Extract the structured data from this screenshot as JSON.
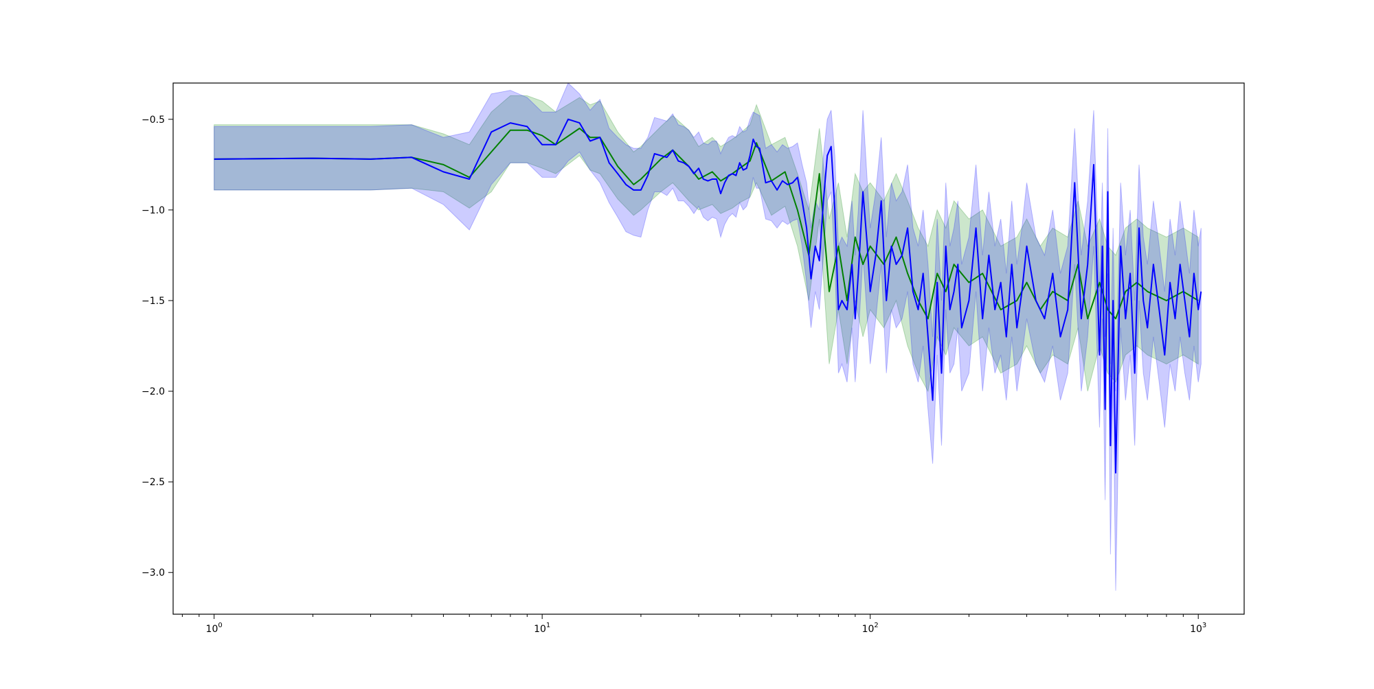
{
  "chart_data": {
    "type": "line",
    "title": "",
    "xlabel": "",
    "ylabel": "",
    "x_scale": "log",
    "xlim": [
      0.75,
      1380
    ],
    "ylim": [
      -3.23,
      -0.3
    ],
    "grid": false,
    "legend": "none",
    "x_ticks": [
      {
        "value": 1,
        "base": "10",
        "exp": "0"
      },
      {
        "value": 10,
        "base": "10",
        "exp": "1"
      },
      {
        "value": 100,
        "base": "10",
        "exp": "2"
      },
      {
        "value": 1000,
        "base": "10",
        "exp": "3"
      }
    ],
    "y_ticks": [
      {
        "value": -0.5,
        "label": "−0.5"
      },
      {
        "value": -1.0,
        "label": "−1.0"
      },
      {
        "value": -1.5,
        "label": "−1.5"
      },
      {
        "value": -2.0,
        "label": "−2.0"
      },
      {
        "value": -2.5,
        "label": "−2.5"
      },
      {
        "value": -3.0,
        "label": "−3.0"
      }
    ],
    "series": [
      {
        "color": "#008000",
        "band_color": "#008000",
        "band_opacity": 0.2,
        "x": [
          1,
          2,
          3,
          4,
          5,
          6,
          7,
          8,
          9,
          10,
          11,
          13,
          14,
          15,
          17,
          19,
          20,
          23,
          25,
          28,
          30,
          33,
          35,
          38,
          40,
          43,
          45,
          50,
          55,
          60,
          65,
          70,
          75,
          80,
          85,
          90,
          95,
          100,
          110,
          120,
          130,
          140,
          150,
          160,
          170,
          180,
          200,
          220,
          250,
          280,
          300,
          330,
          360,
          400,
          430,
          460,
          500,
          530,
          560,
          600,
          650,
          700,
          800,
          900,
          1000
        ],
        "y": [
          -0.72,
          -0.715,
          -0.72,
          -0.71,
          -0.75,
          -0.82,
          -0.68,
          -0.56,
          -0.56,
          -0.59,
          -0.64,
          -0.55,
          -0.6,
          -0.6,
          -0.76,
          -0.86,
          -0.83,
          -0.72,
          -0.67,
          -0.76,
          -0.83,
          -0.79,
          -0.84,
          -0.8,
          -0.77,
          -0.73,
          -0.63,
          -0.84,
          -0.79,
          -1.0,
          -1.25,
          -0.8,
          -1.45,
          -1.2,
          -1.5,
          -1.15,
          -1.3,
          -1.2,
          -1.3,
          -1.15,
          -1.35,
          -1.5,
          -1.6,
          -1.35,
          -1.45,
          -1.3,
          -1.4,
          -1.35,
          -1.55,
          -1.5,
          -1.4,
          -1.55,
          -1.45,
          -1.5,
          -1.3,
          -1.6,
          -1.4,
          -1.55,
          -1.6,
          -1.45,
          -1.4,
          -1.45,
          -1.5,
          -1.45,
          -1.5
        ],
        "lower": [
          -0.89,
          -0.89,
          -0.89,
          -0.88,
          -0.9,
          -0.99,
          -0.9,
          -0.74,
          -0.74,
          -0.77,
          -0.8,
          -0.7,
          -0.78,
          -0.8,
          -0.94,
          -1.03,
          -1.0,
          -0.9,
          -0.85,
          -0.95,
          -1.0,
          -0.97,
          -1.02,
          -0.99,
          -0.96,
          -0.93,
          -0.85,
          -1.03,
          -0.98,
          -1.2,
          -1.5,
          -1.05,
          -1.85,
          -1.55,
          -1.85,
          -1.5,
          -1.7,
          -1.55,
          -1.65,
          -1.5,
          -1.75,
          -1.9,
          -2.0,
          -1.7,
          -1.8,
          -1.65,
          -1.75,
          -1.7,
          -1.9,
          -1.85,
          -1.75,
          -1.9,
          -1.8,
          -1.85,
          -1.65,
          -2.0,
          -1.75,
          -1.9,
          -1.95,
          -1.8,
          -1.75,
          -1.8,
          -1.85,
          -1.8,
          -1.85
        ],
        "upper": [
          -0.53,
          -0.53,
          -0.53,
          -0.53,
          -0.58,
          -0.64,
          -0.46,
          -0.37,
          -0.37,
          -0.4,
          -0.46,
          -0.38,
          -0.42,
          -0.4,
          -0.57,
          -0.68,
          -0.65,
          -0.54,
          -0.48,
          -0.56,
          -0.65,
          -0.6,
          -0.65,
          -0.61,
          -0.58,
          -0.53,
          -0.42,
          -0.64,
          -0.6,
          -0.8,
          -1.0,
          -0.55,
          -1.05,
          -0.85,
          -1.15,
          -0.8,
          -0.9,
          -0.85,
          -0.95,
          -0.8,
          -0.95,
          -1.1,
          -1.2,
          -1.0,
          -1.1,
          -0.95,
          -1.05,
          -1.0,
          -1.2,
          -1.15,
          -1.05,
          -1.2,
          -1.1,
          -1.15,
          -0.95,
          -1.2,
          -1.05,
          -1.2,
          -1.25,
          -1.1,
          -1.05,
          -1.1,
          -1.15,
          -1.1,
          -1.15
        ]
      },
      {
        "color": "#0000ff",
        "band_color": "#0000ff",
        "band_opacity": 0.2,
        "x": [
          1,
          2,
          3,
          4,
          5,
          6,
          7,
          8,
          9,
          10,
          11,
          12,
          13,
          14,
          15,
          16,
          17,
          18,
          19,
          20,
          21,
          22,
          23,
          24,
          25,
          26,
          27,
          28,
          29,
          30,
          31,
          32,
          33,
          34,
          35,
          36,
          37,
          38,
          39,
          40,
          41,
          42,
          43,
          44,
          45,
          46,
          48,
          50,
          52,
          54,
          56,
          58,
          60,
          62,
          64,
          66,
          68,
          70,
          72,
          74,
          76,
          78,
          80,
          82,
          85,
          88,
          90,
          92,
          95,
          98,
          100,
          104,
          108,
          112,
          116,
          120,
          125,
          130,
          135,
          140,
          145,
          150,
          155,
          160,
          165,
          170,
          175,
          180,
          185,
          190,
          200,
          210,
          220,
          230,
          240,
          250,
          260,
          270,
          280,
          290,
          300,
          320,
          340,
          360,
          380,
          400,
          420,
          440,
          460,
          480,
          500,
          510,
          520,
          530,
          540,
          550,
          560,
          580,
          600,
          620,
          640,
          660,
          680,
          700,
          730,
          760,
          790,
          820,
          850,
          880,
          910,
          940,
          970,
          1000,
          1020
        ],
        "y": [
          -0.72,
          -0.715,
          -0.72,
          -0.71,
          -0.79,
          -0.83,
          -0.57,
          -0.52,
          -0.54,
          -0.64,
          -0.64,
          -0.5,
          -0.52,
          -0.62,
          -0.6,
          -0.74,
          -0.8,
          -0.86,
          -0.89,
          -0.89,
          -0.81,
          -0.69,
          -0.7,
          -0.71,
          -0.67,
          -0.73,
          -0.74,
          -0.76,
          -0.8,
          -0.77,
          -0.83,
          -0.84,
          -0.83,
          -0.83,
          -0.91,
          -0.85,
          -0.81,
          -0.8,
          -0.81,
          -0.74,
          -0.78,
          -0.77,
          -0.7,
          -0.61,
          -0.65,
          -0.66,
          -0.85,
          -0.84,
          -0.89,
          -0.84,
          -0.86,
          -0.85,
          -0.82,
          -0.95,
          -1.1,
          -1.38,
          -1.2,
          -1.28,
          -0.95,
          -0.7,
          -0.65,
          -1.0,
          -1.55,
          -1.5,
          -1.55,
          -1.3,
          -1.6,
          -1.35,
          -0.9,
          -1.2,
          -1.45,
          -1.25,
          -0.95,
          -1.5,
          -1.2,
          -1.3,
          -1.25,
          -1.1,
          -1.45,
          -1.55,
          -1.35,
          -1.7,
          -2.05,
          -1.4,
          -1.9,
          -1.2,
          -1.55,
          -1.45,
          -1.3,
          -1.65,
          -1.5,
          -1.1,
          -1.6,
          -1.25,
          -1.55,
          -1.4,
          -1.7,
          -1.3,
          -1.65,
          -1.45,
          -1.2,
          -1.5,
          -1.6,
          -1.35,
          -1.7,
          -1.55,
          -0.85,
          -1.6,
          -1.3,
          -0.75,
          -1.8,
          -1.2,
          -2.1,
          -0.9,
          -2.3,
          -1.5,
          -2.45,
          -1.2,
          -1.6,
          -1.35,
          -1.9,
          -1.1,
          -1.5,
          -1.65,
          -1.3,
          -1.55,
          -1.8,
          -1.4,
          -1.6,
          -1.3,
          -1.5,
          -1.7,
          -1.35,
          -1.55,
          -1.45
        ],
        "lower": [
          -0.89,
          -0.89,
          -0.89,
          -0.88,
          -0.97,
          -1.11,
          -0.86,
          -0.74,
          -0.74,
          -0.82,
          -0.82,
          -0.73,
          -0.68,
          -0.78,
          -0.85,
          -0.96,
          -1.04,
          -1.12,
          -1.14,
          -1.15,
          -1.0,
          -0.9,
          -0.9,
          -0.92,
          -0.88,
          -0.95,
          -0.95,
          -0.98,
          -1.02,
          -0.98,
          -1.04,
          -1.06,
          -1.04,
          -1.05,
          -1.15,
          -1.08,
          -1.04,
          -1.02,
          -1.04,
          -0.96,
          -1.0,
          -0.98,
          -0.92,
          -0.82,
          -0.88,
          -0.88,
          -1.05,
          -1.06,
          -1.1,
          -1.06,
          -1.08,
          -1.06,
          -1.05,
          -1.2,
          -1.4,
          -1.65,
          -1.45,
          -1.55,
          -1.25,
          -0.95,
          -0.9,
          -1.3,
          -1.9,
          -1.85,
          -1.95,
          -1.65,
          -1.95,
          -1.7,
          -1.25,
          -1.6,
          -1.85,
          -1.6,
          -1.3,
          -1.9,
          -1.55,
          -1.65,
          -1.6,
          -1.45,
          -1.85,
          -1.95,
          -1.75,
          -2.1,
          -2.4,
          -1.8,
          -2.3,
          -1.55,
          -1.9,
          -1.85,
          -1.65,
          -2.0,
          -1.9,
          -1.45,
          -2.0,
          -1.65,
          -1.9,
          -1.8,
          -2.05,
          -1.7,
          -2.0,
          -1.8,
          -1.6,
          -1.85,
          -1.95,
          -1.75,
          -2.05,
          -1.9,
          -1.3,
          -2.0,
          -1.7,
          -1.2,
          -2.2,
          -1.6,
          -2.6,
          -1.35,
          -2.9,
          -1.95,
          -3.1,
          -1.65,
          -2.05,
          -1.8,
          -2.3,
          -1.5,
          -1.9,
          -2.05,
          -1.7,
          -1.95,
          -2.2,
          -1.85,
          -2.0,
          -1.7,
          -1.9,
          -2.05,
          -1.75,
          -1.95,
          -1.85
        ],
        "upper": [
          -0.54,
          -0.54,
          -0.54,
          -0.53,
          -0.6,
          -0.57,
          -0.36,
          -0.34,
          -0.38,
          -0.46,
          -0.46,
          -0.3,
          -0.36,
          -0.45,
          -0.39,
          -0.55,
          -0.6,
          -0.64,
          -0.66,
          -0.66,
          -0.6,
          -0.49,
          -0.5,
          -0.51,
          -0.47,
          -0.53,
          -0.54,
          -0.56,
          -0.6,
          -0.57,
          -0.63,
          -0.64,
          -0.62,
          -0.62,
          -0.69,
          -0.64,
          -0.6,
          -0.59,
          -0.6,
          -0.54,
          -0.57,
          -0.56,
          -0.5,
          -0.46,
          -0.47,
          -0.48,
          -0.66,
          -0.64,
          -0.68,
          -0.64,
          -0.66,
          -0.65,
          -0.63,
          -0.75,
          -0.85,
          -1.1,
          -0.95,
          -1.0,
          -0.7,
          -0.5,
          -0.45,
          -0.7,
          -1.2,
          -1.15,
          -1.2,
          -0.95,
          -1.25,
          -1.0,
          -0.45,
          -0.85,
          -1.1,
          -0.9,
          -0.6,
          -1.15,
          -0.85,
          -0.95,
          -0.9,
          -0.75,
          -1.1,
          -1.2,
          -1.0,
          -1.3,
          -1.7,
          -1.05,
          -1.5,
          -0.85,
          -1.2,
          -1.1,
          -0.95,
          -1.3,
          -1.15,
          -0.75,
          -1.25,
          -0.9,
          -1.2,
          -1.05,
          -1.35,
          -0.95,
          -1.3,
          -1.1,
          -0.85,
          -1.15,
          -1.25,
          -1.0,
          -1.35,
          -1.2,
          -0.55,
          -1.25,
          -0.95,
          -0.45,
          -1.45,
          -0.85,
          -1.7,
          -0.55,
          -1.85,
          -1.1,
          -2.0,
          -0.85,
          -1.25,
          -1.0,
          -1.5,
          -0.75,
          -1.15,
          -1.3,
          -0.95,
          -1.2,
          -1.45,
          -1.05,
          -1.25,
          -0.95,
          -1.15,
          -1.35,
          -1.0,
          -1.2,
          -1.1
        ]
      }
    ]
  }
}
